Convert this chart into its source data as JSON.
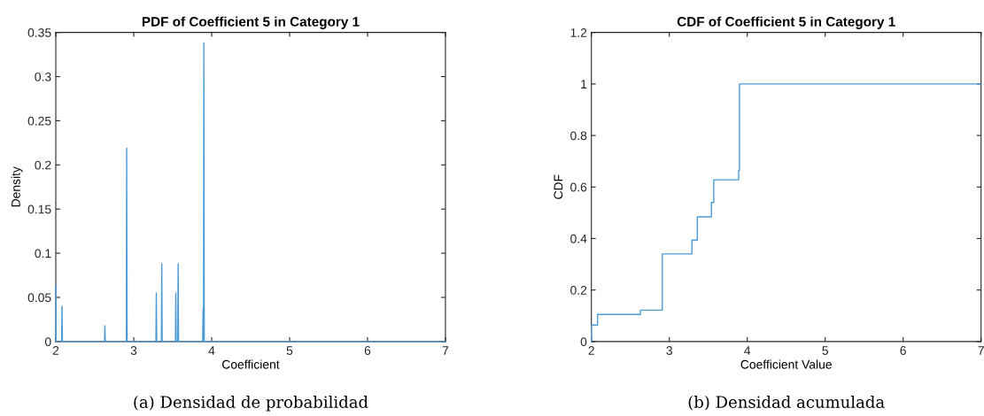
{
  "chart_data": [
    {
      "type": "line",
      "title": "PDF of Coefficient 5 in Category 1",
      "xlabel": "Coefficient",
      "ylabel": "Density",
      "series": [
        {
          "color": "#4c9bd6",
          "x": [
            2.0,
            2.0,
            2.004,
            2.075,
            2.08,
            2.085,
            2.625,
            2.63,
            2.635,
            2.905,
            2.91,
            2.915,
            3.285,
            3.29,
            3.295,
            3.355,
            3.36,
            3.365,
            3.535,
            3.54,
            3.545,
            3.565,
            3.57,
            3.575,
            3.885,
            3.89,
            3.895,
            3.9,
            3.905,
            7.0
          ],
          "values": [
            0,
            0.064,
            0,
            0,
            0.04,
            0,
            0,
            0.018,
            0,
            0,
            0.219,
            0,
            0,
            0.055,
            0,
            0,
            0.088,
            0,
            0,
            0.055,
            0,
            0,
            0.088,
            0,
            0,
            0.037,
            0,
            0.338,
            0,
            0
          ]
        }
      ],
      "xlim": [
        2,
        7
      ],
      "xticks": [
        2,
        3,
        4,
        5,
        6,
        7
      ],
      "ylim": [
        0,
        0.35
      ],
      "yticks": [
        0,
        0.05,
        0.1,
        0.15,
        0.2,
        0.25,
        0.3,
        0.35
      ],
      "annotations": [
        "(a) Densidad de probabilidad"
      ]
    },
    {
      "type": "step",
      "title": "CDF of Coefficient 5 in Category 1",
      "xlabel": "Coefficient Value",
      "ylabel": "CDF",
      "series": [
        {
          "color": "#4c9bd6",
          "x": [
            2.0,
            2.0,
            2.08,
            2.63,
            2.91,
            3.29,
            3.36,
            3.54,
            3.57,
            3.89,
            3.9,
            7.0
          ],
          "values": [
            0,
            0.064,
            0.105,
            0.122,
            0.34,
            0.394,
            0.484,
            0.54,
            0.628,
            0.664,
            1,
            1
          ]
        }
      ],
      "xlim": [
        2,
        7
      ],
      "xticks": [
        2,
        3,
        4,
        5,
        6,
        7
      ],
      "ylim": [
        0,
        1.2
      ],
      "yticks": [
        0,
        0.2,
        0.4,
        0.6,
        0.8,
        1,
        1.2
      ],
      "annotations": [
        "(b) Densidad acumulada"
      ]
    }
  ]
}
